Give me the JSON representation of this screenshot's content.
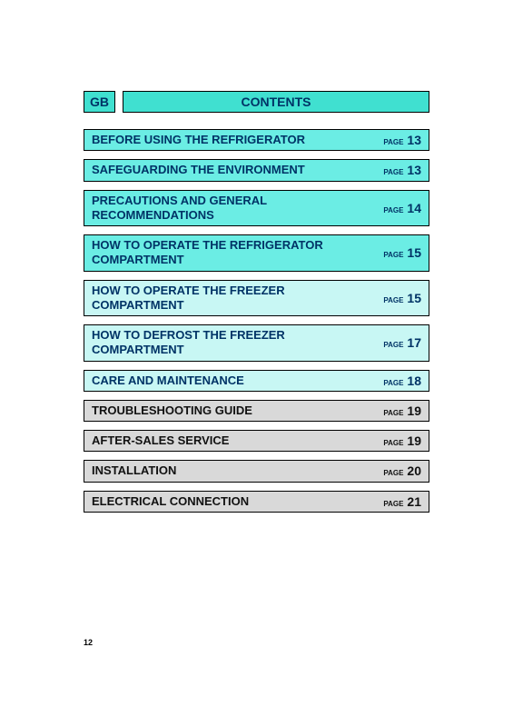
{
  "header": {
    "language_code": "GB",
    "title": "CONTENTS",
    "background_color": "#40e0d0",
    "text_color": "#003366"
  },
  "page_label": "PAGE",
  "colors": {
    "cyan": "#6bede4",
    "light_cyan": "#c8f7f4",
    "gray": "#d9d9d9",
    "title_text": "#003366",
    "gray_text": "#111111",
    "border": "#000000"
  },
  "items": [
    {
      "title": "BEFORE USING THE REFRIGERATOR",
      "page": "13",
      "bg": "cyan",
      "text_color": "title_text"
    },
    {
      "title": "SAFEGUARDING THE ENVIRONMENT",
      "page": "13",
      "bg": "cyan",
      "text_color": "title_text"
    },
    {
      "title": "PRECAUTIONS AND GENERAL RECOMMENDATIONS",
      "page": "14",
      "bg": "cyan",
      "text_color": "title_text"
    },
    {
      "title": "HOW TO OPERATE THE REFRIGERATOR COMPARTMENT",
      "page": "15",
      "bg": "cyan",
      "text_color": "title_text"
    },
    {
      "title": "HOW TO OPERATE THE FREEZER COMPARTMENT",
      "page": "15",
      "bg": "light_cyan",
      "text_color": "title_text"
    },
    {
      "title": "HOW TO DEFROST THE FREEZER COMPARTMENT",
      "page": "17",
      "bg": "light_cyan",
      "text_color": "title_text"
    },
    {
      "title": "CARE AND MAINTENANCE",
      "page": "18",
      "bg": "light_cyan",
      "text_color": "title_text"
    },
    {
      "title": "TROUBLESHOOTING GUIDE",
      "page": "19",
      "bg": "gray",
      "text_color": "gray_text"
    },
    {
      "title": "AFTER-SALES SERVICE",
      "page": "19",
      "bg": "gray",
      "text_color": "gray_text"
    },
    {
      "title": "INSTALLATION",
      "page": "20",
      "bg": "gray",
      "text_color": "gray_text"
    },
    {
      "title": "ELECTRICAL CONNECTION",
      "page": "21",
      "bg": "gray",
      "text_color": "gray_text"
    }
  ],
  "footer_page_number": "12"
}
